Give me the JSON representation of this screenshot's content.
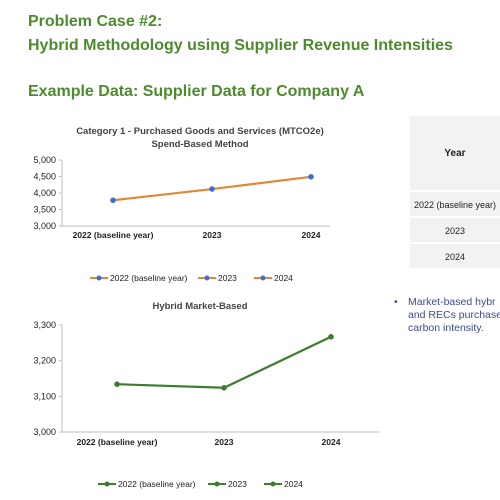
{
  "slide": {
    "title_line1": "Problem Case #2:",
    "title_line2": "Hybrid Methodology using Supplier Revenue Intensities",
    "subtitle": "Example Data: Supplier Data for Company A"
  },
  "chart_data": [
    {
      "type": "line",
      "title_line1": "Category 1 - Purchased Goods and Services (MTCO2e)",
      "title_line2": "Spend-Based Method",
      "categories": [
        "2022 (baseline year)",
        "2023",
        "2024"
      ],
      "series": [
        {
          "values": [
            3780,
            4120,
            4490
          ],
          "color": "#e0883a",
          "marker_color": "#3e6fd1"
        }
      ],
      "yticks": [
        3000,
        3500,
        4000,
        4500,
        5000
      ],
      "yticks_labels": [
        "3,000",
        "3,500",
        "4,000",
        "4,500",
        "5,000"
      ],
      "ylim": [
        3000,
        5000
      ],
      "legend": [
        "2022 (baseline year)",
        "2023",
        "2024"
      ],
      "legend_position": "bottom",
      "grid": false
    },
    {
      "type": "line",
      "title": "Hybrid Market-Based",
      "categories": [
        "2022 (baseline year)",
        "2023",
        "2024"
      ],
      "series": [
        {
          "values": [
            3134,
            3124,
            3267
          ],
          "color": "#3e7d2e",
          "marker_color": "#3e7d2e"
        }
      ],
      "yticks": [
        3000,
        3100,
        3200,
        3300
      ],
      "yticks_labels": [
        "3,000",
        "3,100",
        "3,200",
        "3,300"
      ],
      "ylim": [
        3000,
        3300
      ],
      "legend": [
        "2022 (baseline year)",
        "2023",
        "2024"
      ],
      "legend_position": "bottom",
      "grid": false
    }
  ],
  "table": {
    "header": "Year",
    "rows": [
      "2022 (baseline year)",
      "2023",
      "2024"
    ]
  },
  "bullet": {
    "symbol": "•",
    "text": "Market-based hybr\nand RECs purchase\ncarbon intensity."
  }
}
